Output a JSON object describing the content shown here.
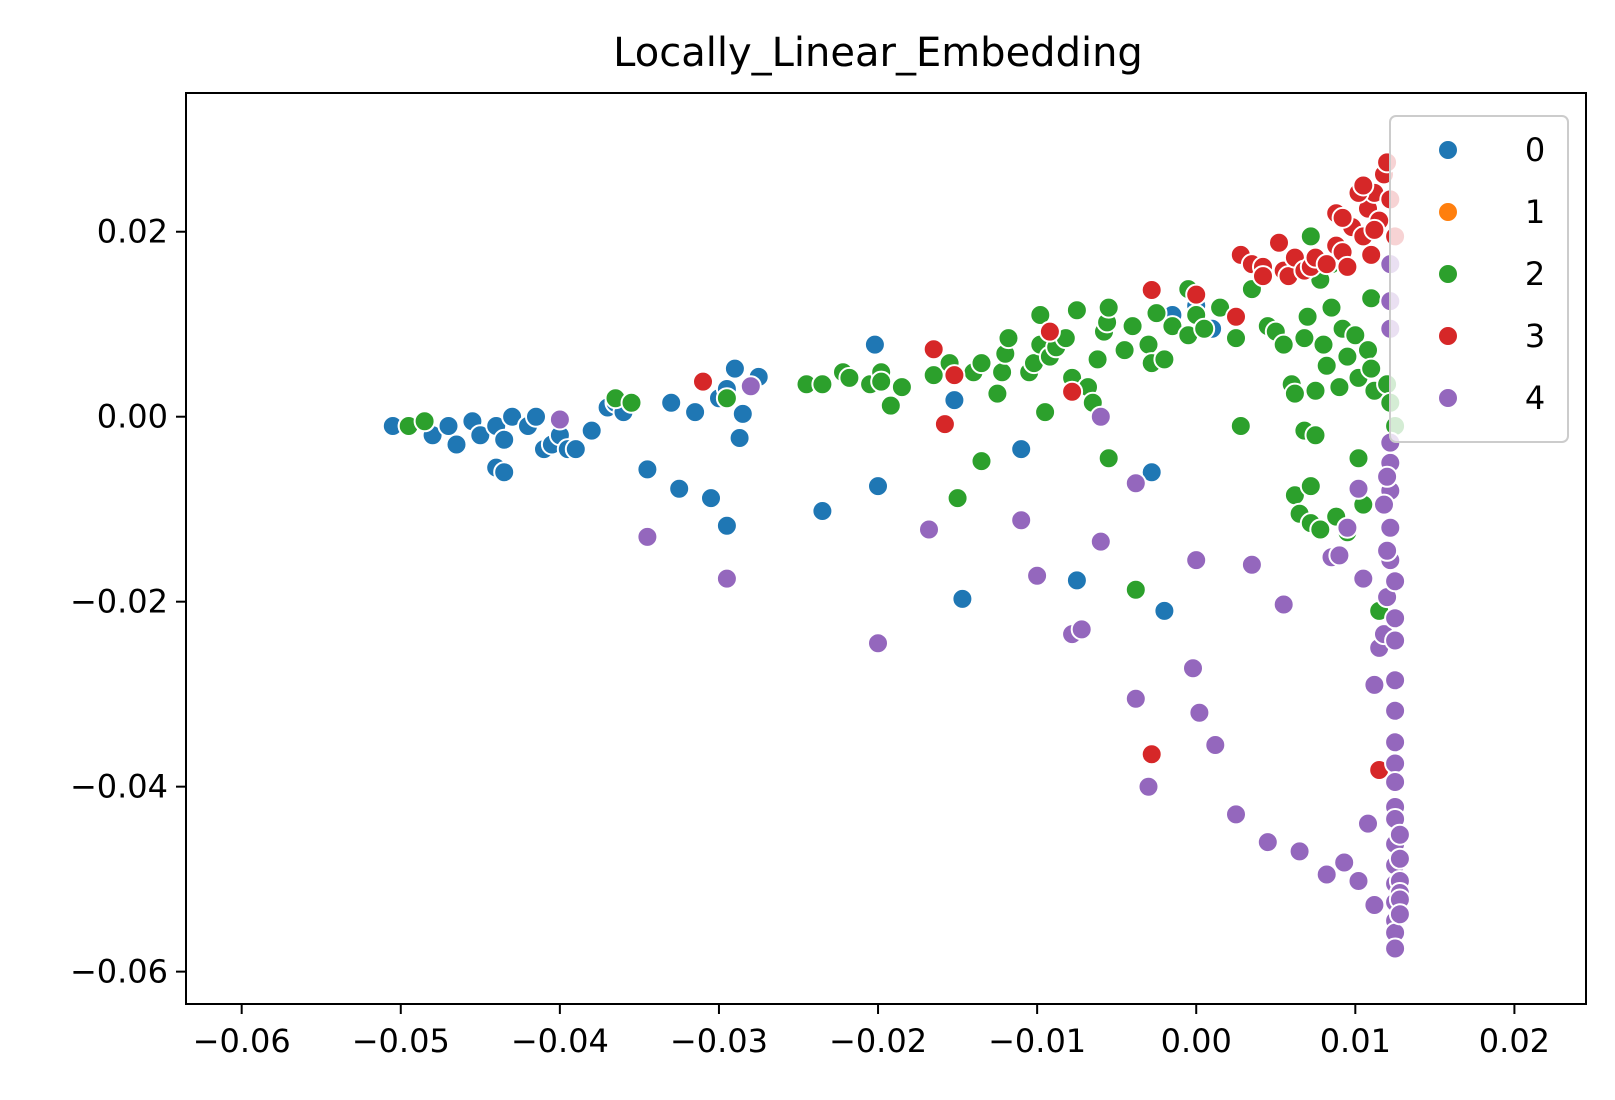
{
  "chart_data": {
    "type": "scatter",
    "title": "Locally_Linear_Embedding",
    "xlabel": "",
    "ylabel": "",
    "xlim": [
      -0.0635,
      0.0245
    ],
    "ylim": [
      -0.0635,
      0.035
    ],
    "xticks": [
      -0.06,
      -0.05,
      -0.04,
      -0.03,
      -0.02,
      -0.01,
      0.0,
      0.01,
      0.02
    ],
    "xtick_labels": [
      "−0.06",
      "−0.05",
      "−0.04",
      "−0.03",
      "−0.02",
      "−0.01",
      "0.00",
      "0.01",
      "0.02"
    ],
    "yticks": [
      -0.06,
      -0.04,
      -0.02,
      0.0,
      0.02
    ],
    "ytick_labels": [
      "−0.06",
      "−0.04",
      "−0.02",
      "0.00",
      "0.02"
    ],
    "grid": false,
    "legend_position": "top-right",
    "series": [
      {
        "name": "0",
        "color": "#1f77b4",
        "points": [
          [
            -0.0505,
            -0.001
          ],
          [
            -0.0495,
            -0.001
          ],
          [
            -0.048,
            -0.002
          ],
          [
            -0.047,
            -0.001
          ],
          [
            -0.0465,
            -0.003
          ],
          [
            -0.0455,
            -0.0005
          ],
          [
            -0.045,
            -0.002
          ],
          [
            -0.044,
            -0.001
          ],
          [
            -0.0435,
            -0.0025
          ],
          [
            -0.043,
            0.0
          ],
          [
            -0.042,
            -0.001
          ],
          [
            -0.0415,
            0.0
          ],
          [
            -0.041,
            -0.0035
          ],
          [
            -0.0405,
            -0.003
          ],
          [
            -0.04,
            -0.002
          ],
          [
            -0.0395,
            -0.0035
          ],
          [
            -0.039,
            -0.0035
          ],
          [
            -0.038,
            -0.0015
          ],
          [
            -0.037,
            0.001
          ],
          [
            -0.0365,
            0.0015
          ],
          [
            -0.036,
            0.0005
          ],
          [
            -0.044,
            -0.0055
          ],
          [
            -0.0435,
            -0.006
          ],
          [
            -0.0345,
            -0.0057
          ],
          [
            -0.033,
            0.0015
          ],
          [
            -0.0325,
            -0.0078
          ],
          [
            -0.0315,
            0.0005
          ],
          [
            -0.0305,
            -0.0088
          ],
          [
            -0.03,
            0.002
          ],
          [
            -0.0295,
            0.003
          ],
          [
            -0.029,
            0.0052
          ],
          [
            -0.0285,
            0.0003
          ],
          [
            -0.0287,
            -0.0023
          ],
          [
            -0.0295,
            -0.0118
          ],
          [
            -0.0275,
            0.0043
          ],
          [
            -0.0235,
            -0.0102
          ],
          [
            -0.0202,
            0.0078
          ],
          [
            -0.02,
            -0.0075
          ],
          [
            -0.0152,
            0.0018
          ],
          [
            -0.0147,
            -0.0197
          ],
          [
            -0.011,
            -0.0035
          ],
          [
            -0.0075,
            -0.0177
          ],
          [
            -0.0028,
            -0.006
          ],
          [
            -0.002,
            -0.021
          ],
          [
            -0.0015,
            0.011
          ],
          [
            0.0,
            0.012
          ],
          [
            0.001,
            0.0095
          ]
        ]
      },
      {
        "name": "1",
        "color": "#ff7f0e",
        "points": []
      },
      {
        "name": "2",
        "color": "#2ca02c",
        "points": [
          [
            -0.0495,
            -0.001
          ],
          [
            -0.0485,
            -0.0005
          ],
          [
            -0.0365,
            0.002
          ],
          [
            -0.0355,
            0.0015
          ],
          [
            -0.0295,
            0.002
          ],
          [
            -0.0245,
            0.0035
          ],
          [
            -0.0235,
            0.0035
          ],
          [
            -0.0222,
            0.0048
          ],
          [
            -0.0218,
            0.0042
          ],
          [
            -0.0205,
            0.0035
          ],
          [
            -0.0198,
            0.0048
          ],
          [
            -0.0198,
            0.0038
          ],
          [
            -0.0192,
            0.0012
          ],
          [
            -0.0185,
            0.0032
          ],
          [
            -0.0165,
            0.0045
          ],
          [
            -0.0155,
            0.0058
          ],
          [
            -0.015,
            -0.0088
          ],
          [
            -0.014,
            0.0048
          ],
          [
            -0.0135,
            0.0058
          ],
          [
            -0.0135,
            -0.0048
          ],
          [
            -0.0125,
            0.0025
          ],
          [
            -0.0122,
            0.0048
          ],
          [
            -0.012,
            0.0068
          ],
          [
            -0.0118,
            0.0085
          ],
          [
            -0.0105,
            0.0048
          ],
          [
            -0.0102,
            0.0058
          ],
          [
            -0.0098,
            0.0078
          ],
          [
            -0.0098,
            0.011
          ],
          [
            -0.0095,
            0.0005
          ],
          [
            -0.0092,
            0.0065
          ],
          [
            -0.0088,
            0.0075
          ],
          [
            -0.0082,
            0.0085
          ],
          [
            -0.0078,
            0.0042
          ],
          [
            -0.0075,
            0.0115
          ],
          [
            -0.0068,
            0.0032
          ],
          [
            -0.0065,
            0.0015
          ],
          [
            -0.0062,
            0.0062
          ],
          [
            -0.0058,
            0.0092
          ],
          [
            -0.0056,
            0.0102
          ],
          [
            -0.0055,
            0.0118
          ],
          [
            -0.0055,
            -0.0045
          ],
          [
            -0.0045,
            0.0072
          ],
          [
            -0.004,
            0.0098
          ],
          [
            -0.0038,
            -0.0187
          ],
          [
            -0.003,
            0.0078
          ],
          [
            -0.0028,
            0.0058
          ],
          [
            -0.0025,
            0.0112
          ],
          [
            -0.002,
            0.0062
          ],
          [
            -0.0015,
            0.0098
          ],
          [
            -0.0005,
            0.0088
          ],
          [
            -0.0005,
            0.0138
          ],
          [
            0.0,
            0.011
          ],
          [
            0.0005,
            0.0095
          ],
          [
            0.0015,
            0.0118
          ],
          [
            0.0025,
            0.0085
          ],
          [
            0.0028,
            -0.001
          ],
          [
            0.0035,
            0.0138
          ],
          [
            0.0045,
            0.0098
          ],
          [
            0.005,
            0.0092
          ],
          [
            0.0055,
            0.0078
          ],
          [
            0.006,
            0.0035
          ],
          [
            0.0062,
            0.0025
          ],
          [
            0.0062,
            -0.0085
          ],
          [
            0.0065,
            -0.0105
          ],
          [
            0.0068,
            0.0085
          ],
          [
            0.0068,
            -0.0015
          ],
          [
            0.007,
            0.0108
          ],
          [
            0.0072,
            -0.0075
          ],
          [
            0.0072,
            -0.0115
          ],
          [
            0.0075,
            0.0028
          ],
          [
            0.0075,
            -0.002
          ],
          [
            0.0078,
            -0.0122
          ],
          [
            0.008,
            0.0078
          ],
          [
            0.0082,
            0.0055
          ],
          [
            0.0085,
            0.0118
          ],
          [
            0.0088,
            -0.0108
          ],
          [
            0.009,
            0.0032
          ],
          [
            0.0092,
            0.0095
          ],
          [
            0.0095,
            0.0065
          ],
          [
            0.0095,
            -0.0125
          ],
          [
            0.01,
            0.0088
          ],
          [
            0.0102,
            0.0042
          ],
          [
            0.0102,
            -0.0045
          ],
          [
            0.0105,
            -0.0095
          ],
          [
            0.0108,
            0.0072
          ],
          [
            0.011,
            0.0052
          ],
          [
            0.0112,
            0.0028
          ],
          [
            0.0115,
            -0.021
          ],
          [
            0.012,
            0.0035
          ],
          [
            0.0122,
            0.0015
          ],
          [
            0.0125,
            -0.001
          ],
          [
            0.011,
            0.0128
          ],
          [
            0.0072,
            0.0195
          ],
          [
            0.0078,
            0.0148
          ],
          [
            0.0085,
            0.0165
          ]
        ]
      },
      {
        "name": "3",
        "color": "#d62728",
        "points": [
          [
            -0.031,
            0.0038
          ],
          [
            -0.0165,
            0.0073
          ],
          [
            -0.0158,
            -0.0008
          ],
          [
            -0.0152,
            0.0045
          ],
          [
            -0.0092,
            0.0092
          ],
          [
            -0.0078,
            0.0027
          ],
          [
            -0.0028,
            -0.0365
          ],
          [
            -0.0028,
            0.0137
          ],
          [
            0.0,
            0.0132
          ],
          [
            0.0025,
            0.0108
          ],
          [
            0.0028,
            0.0175
          ],
          [
            0.0035,
            0.0165
          ],
          [
            0.0042,
            0.0162
          ],
          [
            0.0042,
            0.0152
          ],
          [
            0.0052,
            0.0188
          ],
          [
            0.0055,
            0.0158
          ],
          [
            0.0058,
            0.0152
          ],
          [
            0.0062,
            0.0172
          ],
          [
            0.0068,
            0.0158
          ],
          [
            0.0072,
            0.0162
          ],
          [
            0.0075,
            0.0172
          ],
          [
            0.0082,
            0.0165
          ],
          [
            0.0088,
            0.0185
          ],
          [
            0.0092,
            0.0178
          ],
          [
            0.0095,
            0.0162
          ],
          [
            0.0098,
            0.0205
          ],
          [
            0.0105,
            0.0195
          ],
          [
            0.0108,
            0.0225
          ],
          [
            0.011,
            0.0175
          ],
          [
            0.0112,
            0.0242
          ],
          [
            0.0115,
            0.0212
          ],
          [
            0.0118,
            0.0262
          ],
          [
            0.012,
            0.0275
          ],
          [
            0.0122,
            0.0235
          ],
          [
            0.0125,
            0.0195
          ],
          [
            0.0088,
            0.022
          ],
          [
            0.0092,
            0.0215
          ],
          [
            0.0102,
            0.0242
          ],
          [
            0.0105,
            0.025
          ],
          [
            0.0112,
            0.0202
          ],
          [
            0.0115,
            -0.0382
          ]
        ]
      },
      {
        "name": "4",
        "color": "#9467bd",
        "points": [
          [
            -0.04,
            -0.0003
          ],
          [
            -0.0345,
            -0.013
          ],
          [
            -0.0295,
            -0.0175
          ],
          [
            -0.028,
            0.0033
          ],
          [
            -0.02,
            -0.0245
          ],
          [
            -0.0168,
            -0.0122
          ],
          [
            -0.011,
            -0.0112
          ],
          [
            -0.01,
            -0.0172
          ],
          [
            -0.0078,
            -0.0235
          ],
          [
            -0.0072,
            -0.023
          ],
          [
            -0.006,
            -0.0135
          ],
          [
            -0.006,
            0.0
          ],
          [
            -0.0038,
            -0.0072
          ],
          [
            -0.0038,
            -0.0305
          ],
          [
            -0.003,
            -0.04
          ],
          [
            -0.0002,
            -0.0272
          ],
          [
            0.0002,
            -0.032
          ],
          [
            0.0,
            -0.0155
          ],
          [
            0.0012,
            -0.0355
          ],
          [
            0.0025,
            -0.043
          ],
          [
            0.0035,
            -0.016
          ],
          [
            0.0045,
            -0.046
          ],
          [
            0.0055,
            -0.0203
          ],
          [
            0.0065,
            -0.047
          ],
          [
            0.0082,
            -0.0495
          ],
          [
            0.0085,
            -0.0152
          ],
          [
            0.009,
            -0.015
          ],
          [
            0.0093,
            -0.0482
          ],
          [
            0.0095,
            -0.012
          ],
          [
            0.0102,
            -0.0502
          ],
          [
            0.0102,
            -0.0078
          ],
          [
            0.0105,
            -0.0175
          ],
          [
            0.0108,
            -0.044
          ],
          [
            0.0112,
            -0.0528
          ],
          [
            0.0112,
            -0.029
          ],
          [
            0.0115,
            -0.025
          ],
          [
            0.0118,
            -0.0235
          ],
          [
            0.012,
            -0.0195
          ],
          [
            0.0122,
            -0.0155
          ],
          [
            0.0122,
            -0.012
          ],
          [
            0.0122,
            -0.008
          ],
          [
            0.0122,
            -0.005
          ],
          [
            0.0122,
            0.0095
          ],
          [
            0.0122,
            0.0125
          ],
          [
            0.0122,
            0.0165
          ],
          [
            0.0122,
            -0.0028
          ],
          [
            0.0125,
            -0.0178
          ],
          [
            0.0125,
            -0.0218
          ],
          [
            0.0125,
            -0.0242
          ],
          [
            0.0125,
            -0.0285
          ],
          [
            0.0125,
            -0.0318
          ],
          [
            0.0125,
            -0.0352
          ],
          [
            0.0125,
            -0.0375
          ],
          [
            0.0125,
            -0.0395
          ],
          [
            0.0125,
            -0.0422
          ],
          [
            0.0125,
            -0.0435
          ],
          [
            0.0125,
            -0.0462
          ],
          [
            0.0125,
            -0.0485
          ],
          [
            0.0125,
            -0.0505
          ],
          [
            0.0125,
            -0.0525
          ],
          [
            0.0125,
            -0.0545
          ],
          [
            0.0125,
            -0.0558
          ],
          [
            0.0125,
            -0.0575
          ],
          [
            0.0128,
            -0.0502
          ],
          [
            0.0128,
            -0.0515
          ],
          [
            0.0128,
            -0.0522
          ],
          [
            0.0128,
            -0.0538
          ],
          [
            0.0128,
            -0.0478
          ],
          [
            0.0128,
            -0.0452
          ],
          [
            0.012,
            -0.0065
          ],
          [
            0.0118,
            -0.0095
          ],
          [
            0.012,
            -0.0145
          ]
        ]
      }
    ]
  }
}
